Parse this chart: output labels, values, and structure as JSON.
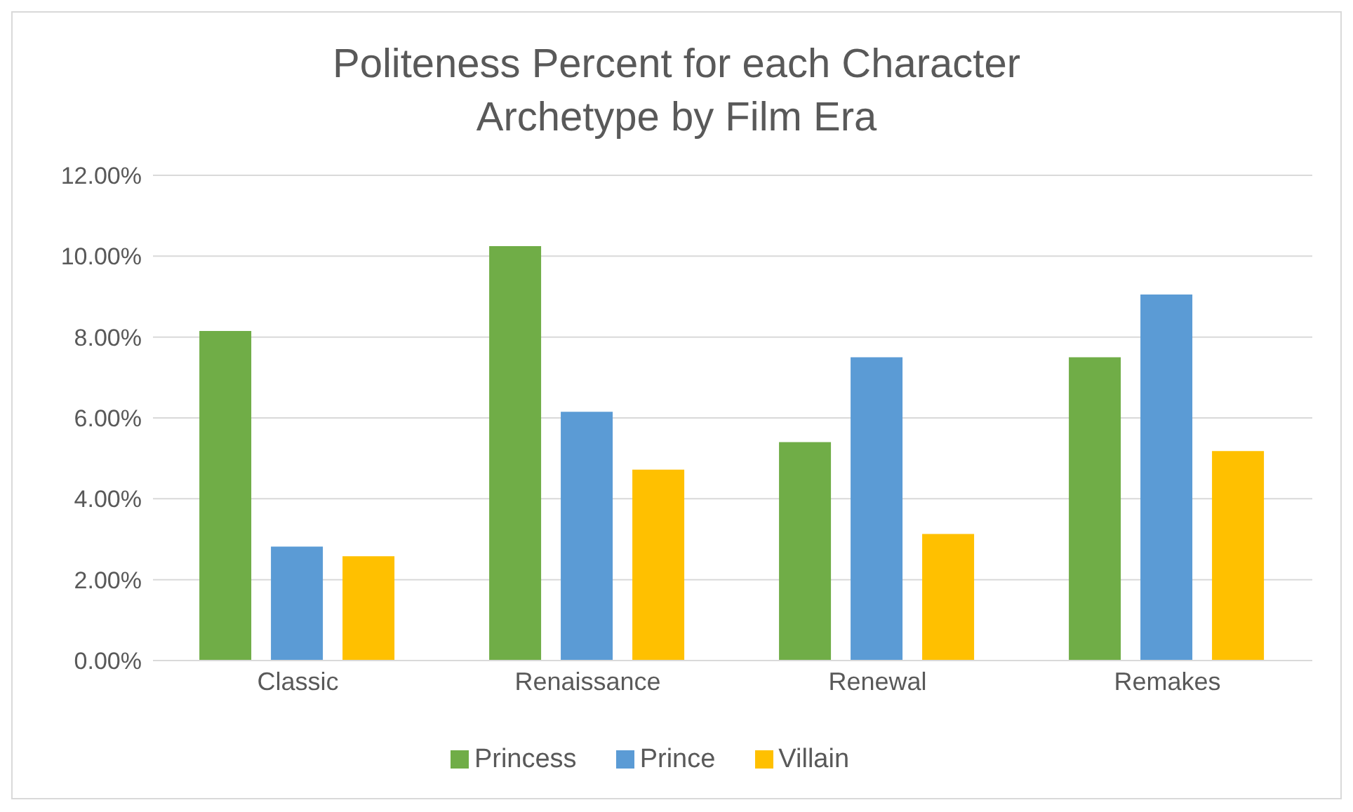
{
  "chart_data": {
    "type": "bar",
    "title": "Politeness Percent for each Character Archetype by Film Era",
    "categories": [
      "Classic",
      "Renaissance",
      "Renewal",
      "Remakes"
    ],
    "series": [
      {
        "name": "Princess",
        "color": "#70ad47",
        "values": [
          8.15,
          10.25,
          5.4,
          7.5
        ]
      },
      {
        "name": "Prince",
        "color": "#5b9bd5",
        "values": [
          2.82,
          6.15,
          7.5,
          9.05
        ]
      },
      {
        "name": "Villain",
        "color": "#ffc000",
        "values": [
          2.58,
          4.72,
          3.13,
          5.18
        ]
      }
    ],
    "ylim": [
      0,
      12
    ],
    "yticks": [
      {
        "value": 0,
        "label": "0.00%"
      },
      {
        "value": 2,
        "label": "2.00%"
      },
      {
        "value": 4,
        "label": "4.00%"
      },
      {
        "value": 6,
        "label": "6.00%"
      },
      {
        "value": 8,
        "label": "8.00%"
      },
      {
        "value": 10,
        "label": "10.00%"
      },
      {
        "value": 12,
        "label": "12.00%"
      }
    ],
    "grid": "y",
    "legend": "bottom"
  }
}
